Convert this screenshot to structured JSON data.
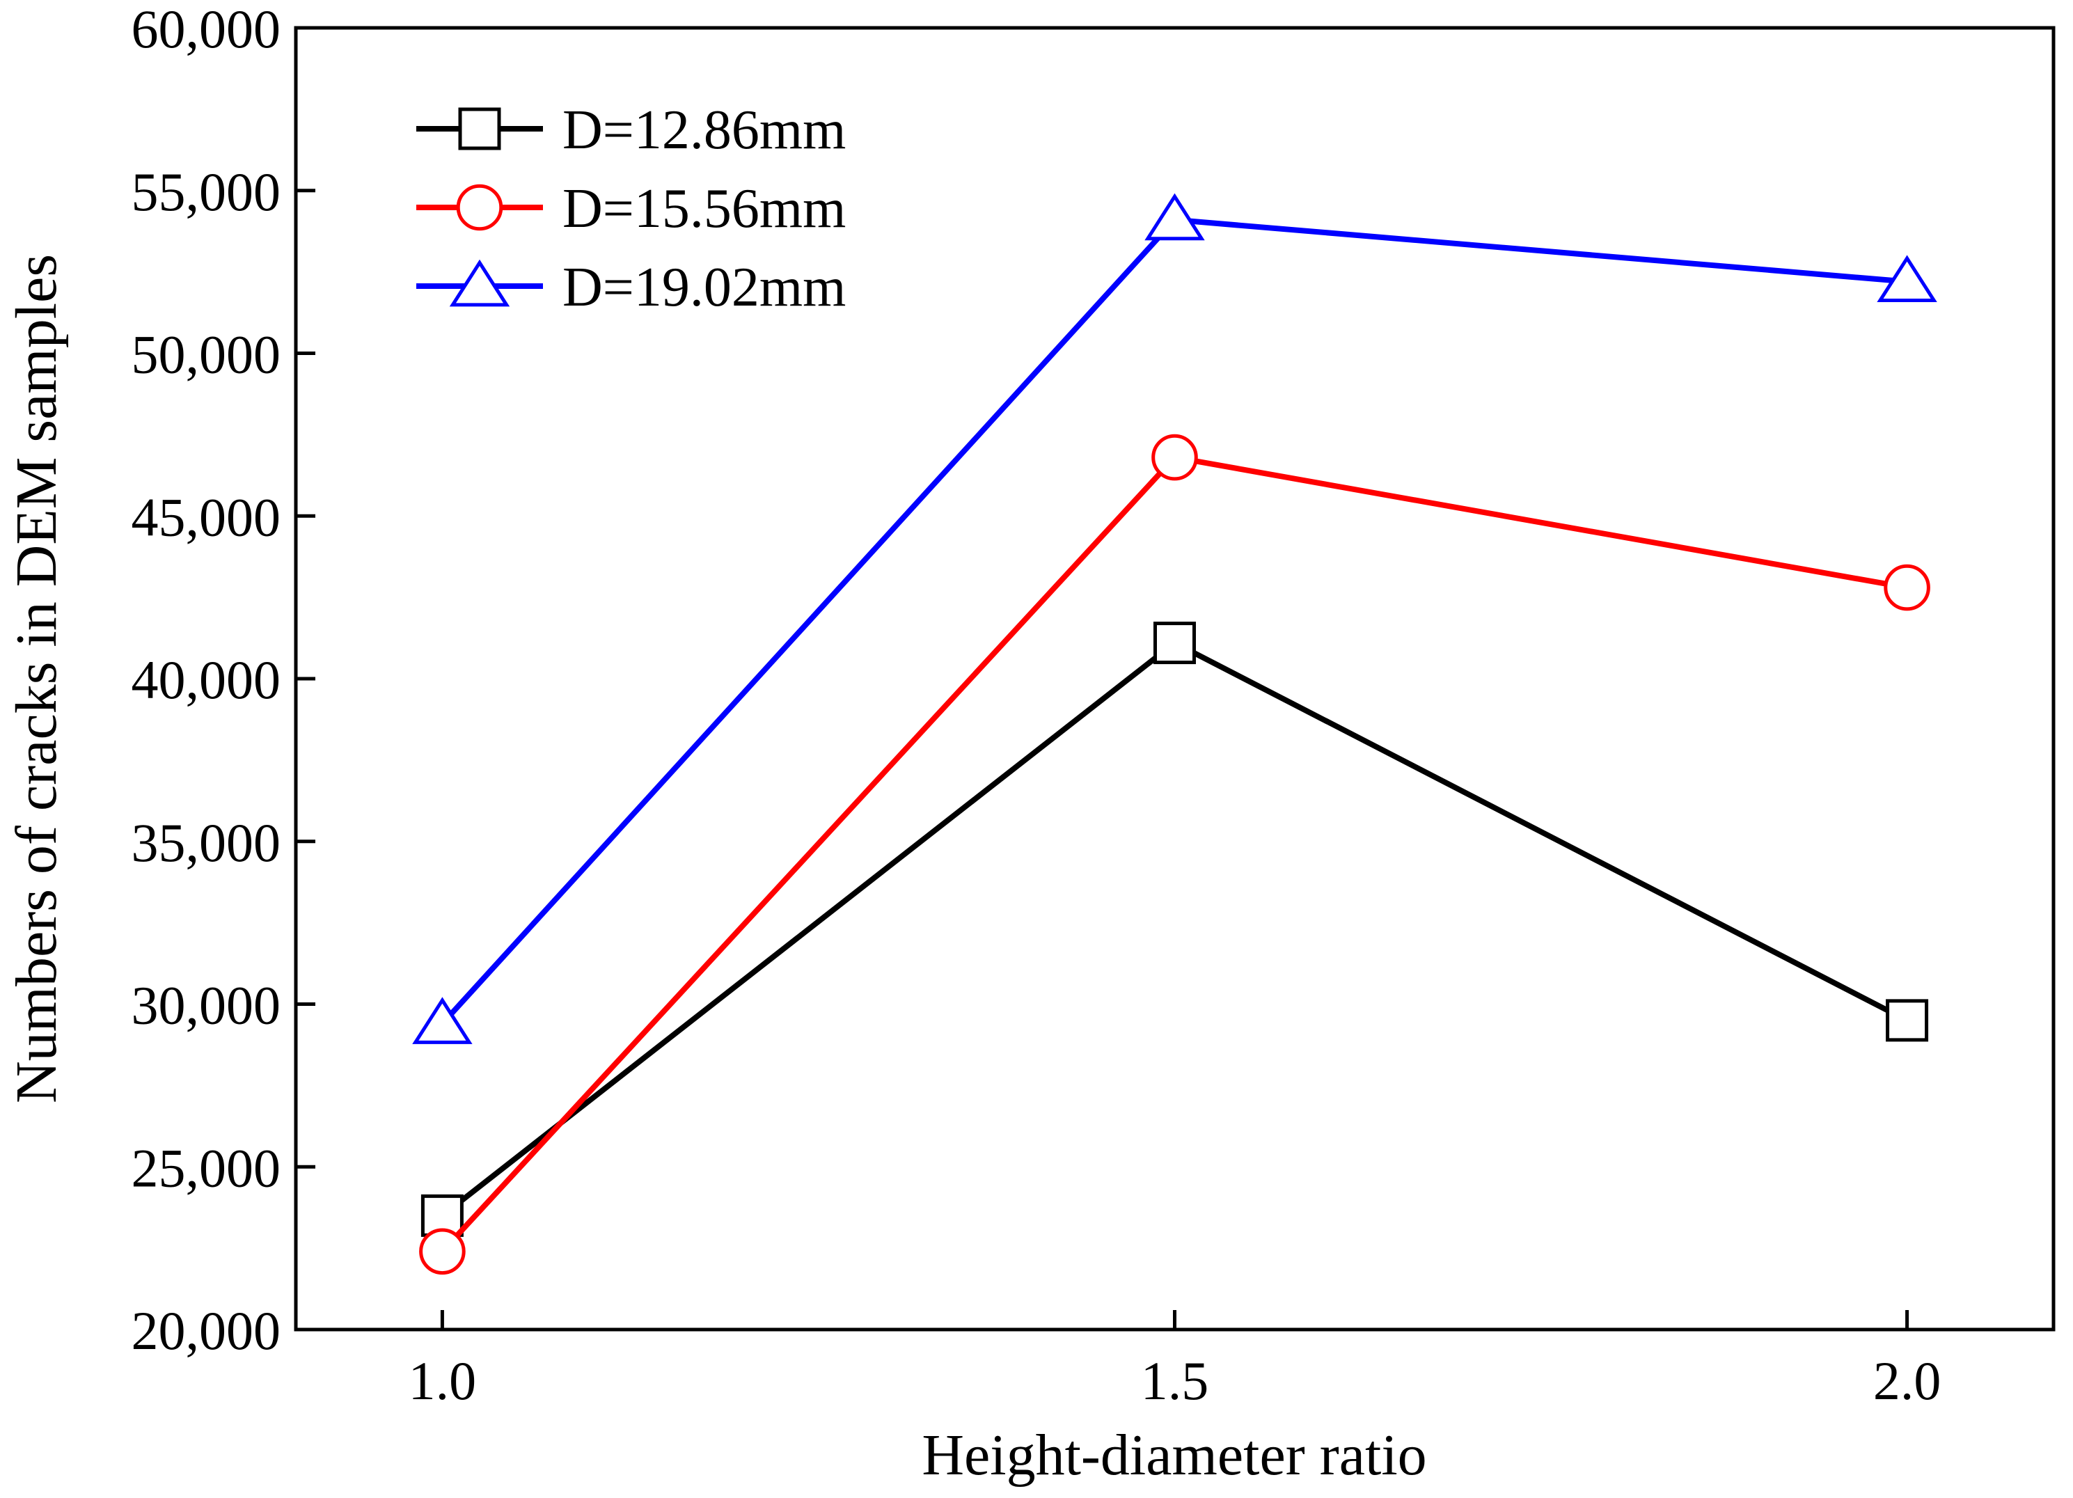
{
  "chart_data": {
    "type": "line",
    "title": "",
    "xlabel": "Height-diameter ratio",
    "ylabel": "Numbers of cracks in DEM samples",
    "x": [
      1.0,
      1.5,
      2.0
    ],
    "x_tick_labels": [
      "1.0",
      "1.5",
      "2.0"
    ],
    "xlim": [
      0.9,
      2.1
    ],
    "ylim": [
      20000,
      60000
    ],
    "y_ticks": [
      20000,
      25000,
      30000,
      35000,
      40000,
      45000,
      50000,
      55000,
      60000
    ],
    "y_tick_labels": [
      "20,000",
      "25,000",
      "30,000",
      "35,000",
      "40,000",
      "45,000",
      "50,000",
      "55,000",
      "60,000"
    ],
    "grid": false,
    "legend_position": "top-left",
    "series": [
      {
        "name": "D=12.86mm",
        "color": "#000000",
        "marker": "square",
        "values": [
          23500,
          41100,
          29500
        ]
      },
      {
        "name": "D=15.56mm",
        "color": "#ff0000",
        "marker": "circle",
        "values": [
          22400,
          46800,
          42800
        ]
      },
      {
        "name": "D=19.02mm",
        "color": "#0000ff",
        "marker": "triangle",
        "values": [
          29400,
          54100,
          52200
        ]
      }
    ]
  }
}
